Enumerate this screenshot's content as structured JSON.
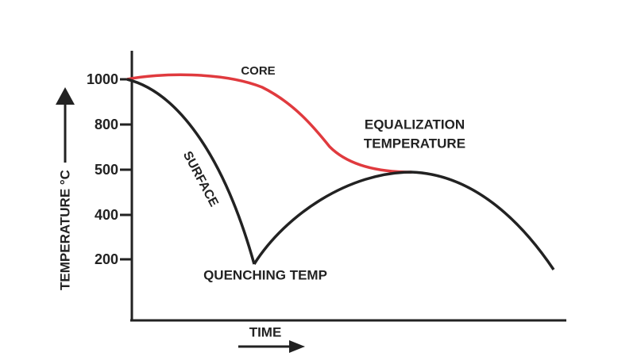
{
  "y_axis": {
    "label": "TEMPERATURE °C",
    "ticks": [
      "1000",
      "800",
      "500",
      "400",
      "200"
    ]
  },
  "x_axis": {
    "label": "TIME"
  },
  "curves": [
    {
      "label": "CORE"
    },
    {
      "label": "SURFACE"
    }
  ],
  "annotations": {
    "quench": "QUENCHING TEMP",
    "equalization": [
      "EQUALIZATION",
      "TEMPERATURE"
    ]
  }
}
